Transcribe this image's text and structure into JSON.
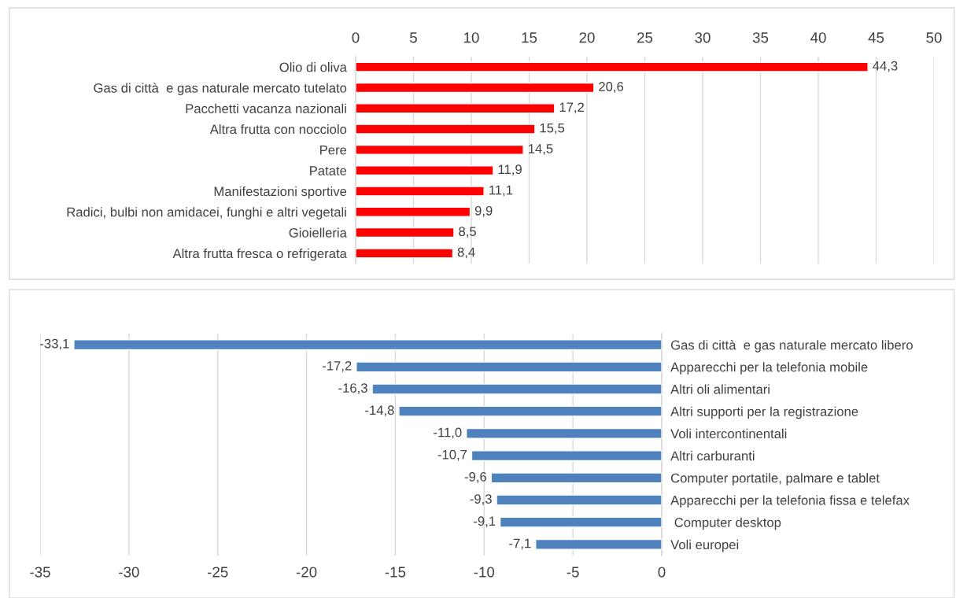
{
  "chart_data": [
    {
      "type": "bar",
      "orientation": "horizontal",
      "color": "#ff0000",
      "grid": "x",
      "xlim": [
        0,
        50
      ],
      "xticks": [
        0,
        5,
        10,
        15,
        20,
        25,
        30,
        35,
        40,
        45,
        50
      ],
      "categories": [
        "Olio di oliva",
        "Gas di città  e gas naturale mercato tutelato",
        "Pacchetti vacanza nazionali",
        "Altra frutta con nocciolo",
        "Pere",
        "Patate",
        "Manifestazioni sportive",
        "Radici, bulbi non amidacei, funghi e altri vegetali",
        "Gioielleria",
        "Altra frutta fresca o refrigerata"
      ],
      "values": [
        44.3,
        20.6,
        17.2,
        15.5,
        14.5,
        11.9,
        11.1,
        9.9,
        8.5,
        8.4
      ],
      "value_labels": [
        "44,3",
        "20,6",
        "17,2",
        "15,5",
        "14,5",
        "11,9",
        "11,1",
        "9,9",
        "8,5",
        "8,4"
      ]
    },
    {
      "type": "bar",
      "orientation": "horizontal",
      "color": "#4f81bd",
      "grid": "x",
      "xlim": [
        -35,
        0
      ],
      "xticks": [
        -35,
        -30,
        -25,
        -20,
        -15,
        -10,
        -5,
        0
      ],
      "categories": [
        "Gas di città  e gas naturale mercato libero",
        "Apparecchi per la telefonia mobile",
        "Altri oli alimentari",
        "Altri supporti per la registrazione",
        "Voli intercontinentali",
        "Altri carburanti",
        "Computer portatile, palmare e tablet",
        "Apparecchi per la telefonia fissa e telefax",
        " Computer desktop",
        "Voli europei"
      ],
      "values": [
        -33.1,
        -17.2,
        -16.3,
        -14.8,
        -11.0,
        -10.7,
        -9.6,
        -9.3,
        -9.1,
        -7.1
      ],
      "value_labels": [
        "-33,1",
        "-17,2",
        "-16,3",
        "-14,8",
        "-11,0",
        "-10,7",
        "-9,6",
        "-9,3",
        "-9,1",
        "-7,1"
      ]
    }
  ]
}
